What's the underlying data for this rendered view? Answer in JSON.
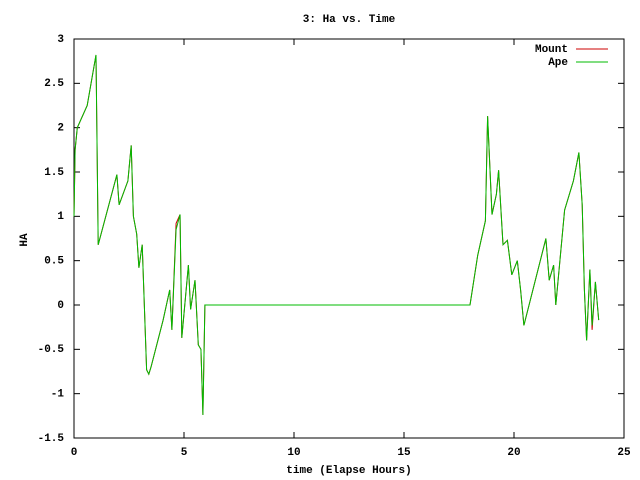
{
  "chart_data": {
    "type": "line",
    "title": "3: Ha vs. Time",
    "x_label": "time (Elapse Hours)",
    "y_label": "HA",
    "x": [
      0,
      0.05,
      0.15,
      0.6,
      1.0,
      1.1,
      1.95,
      2.05,
      2.45,
      2.6,
      2.7,
      2.85,
      2.95,
      3.1,
      3.3,
      3.4,
      3.5,
      4.05,
      4.35,
      4.45,
      4.64,
      4.82,
      4.9,
      5.2,
      5.3,
      5.5,
      5.65,
      5.77,
      5.86,
      5.95,
      18.0,
      18.35,
      18.7,
      18.8,
      19.0,
      19.2,
      19.3,
      19.5,
      19.7,
      19.9,
      20.15,
      20.3,
      20.45,
      21.45,
      21.6,
      21.8,
      21.9,
      22.3,
      22.7,
      22.95,
      23.1,
      23.2,
      23.3,
      23.45,
      23.55,
      23.7,
      23.85
    ],
    "series": [
      {
        "name": "Mount",
        "color": "#cc0000",
        "values": [
          1.0,
          1.75,
          2.0,
          2.25,
          2.82,
          0.68,
          1.47,
          1.13,
          1.4,
          1.8,
          1.0,
          0.8,
          0.42,
          0.68,
          -0.73,
          -0.78,
          -0.7,
          -0.17,
          0.17,
          -0.28,
          0.92,
          1.02,
          -0.37,
          0.45,
          -0.05,
          0.28,
          -0.45,
          -0.5,
          -1.24,
          0,
          0,
          0.56,
          0.95,
          2.13,
          1.02,
          1.25,
          1.52,
          0.68,
          0.73,
          0.34,
          0.5,
          0.17,
          -0.23,
          0.75,
          0.28,
          0.45,
          0,
          1.07,
          1.4,
          1.72,
          1.13,
          0.17,
          -0.4,
          0.4,
          -0.28,
          0.26,
          -0.17
        ]
      },
      {
        "name": "Ape",
        "color": "#00bb00",
        "values": [
          1.0,
          1.75,
          2.0,
          2.25,
          2.82,
          0.68,
          1.47,
          1.13,
          1.4,
          1.8,
          1.0,
          0.8,
          0.42,
          0.68,
          -0.73,
          -0.78,
          -0.7,
          -0.17,
          0.17,
          -0.28,
          0.85,
          1.02,
          -0.37,
          0.45,
          -0.05,
          0.28,
          -0.45,
          -0.5,
          -1.24,
          0,
          0,
          0.56,
          0.95,
          2.13,
          1.02,
          1.25,
          1.52,
          0.68,
          0.73,
          0.34,
          0.5,
          0.17,
          -0.23,
          0.75,
          0.28,
          0.45,
          0,
          1.07,
          1.4,
          1.72,
          1.13,
          0.17,
          -0.4,
          0.4,
          -0.23,
          0.26,
          -0.17
        ]
      }
    ],
    "xlim": [
      0,
      25
    ],
    "xticks": [
      0,
      5,
      10,
      15,
      20,
      25
    ],
    "ylim": [
      -1.5,
      3
    ],
    "yticks": [
      -1.5,
      -1,
      -0.5,
      0,
      0.5,
      1,
      1.5,
      2,
      2.5,
      3
    ],
    "legend": "top-right"
  }
}
